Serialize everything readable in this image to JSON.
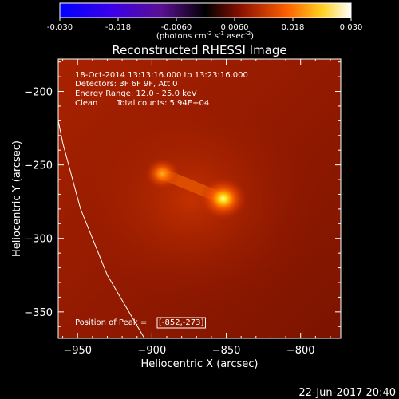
{
  "colorbar": {
    "ticks": [
      "-0.030",
      "-0.018",
      "-0.0060",
      "0.0060",
      "0.018",
      "0.030"
    ],
    "unit_parts": [
      "(photons cm",
      "-2",
      " s",
      "-1",
      " asec",
      "-2",
      ")"
    ]
  },
  "title": "Reconstructed RHESSI Image",
  "annotations": {
    "time_range": "18-Oct-2014 13:13:16.000 to 13:23:16.000",
    "detectors": "Detectors: 3F 6F 9F, Att 0",
    "energy_range": "Energy Range: 12.0 - 25.0 keV",
    "method": "Clean",
    "total_counts": "Total counts: 5.94E+04",
    "peak_label": "Position of Peak = ",
    "peak_value": "[-852,-273]"
  },
  "footer_date": "22-Jun-2017 20:40",
  "chart_data": {
    "type": "heatmap",
    "title": "Reconstructed RHESSI Image",
    "xlabel": "Heliocentric X (arcsec)",
    "ylabel": "Heliocentric Y (arcsec)",
    "xlim": [
      -963,
      -773
    ],
    "ylim": [
      -368,
      -178
    ],
    "x_ticks": [
      -950,
      -900,
      -850,
      -800
    ],
    "y_ticks": [
      -200,
      -250,
      -300,
      -350
    ],
    "colorbar_range": [
      -0.03,
      0.03
    ],
    "colormap": "rainbow-black-red-yellow-white",
    "peak_position": [
      -852,
      -273
    ],
    "sources": [
      {
        "x": -852,
        "y": -273,
        "relative_intensity": 1.0
      },
      {
        "x": -893,
        "y": -256,
        "relative_intensity": 0.62
      }
    ],
    "limb_curve": [
      [
        -905,
        -368
      ],
      [
        -930,
        -325
      ],
      [
        -948,
        -280
      ],
      [
        -960,
        -235
      ],
      [
        -969,
        -190
      ]
    ]
  }
}
